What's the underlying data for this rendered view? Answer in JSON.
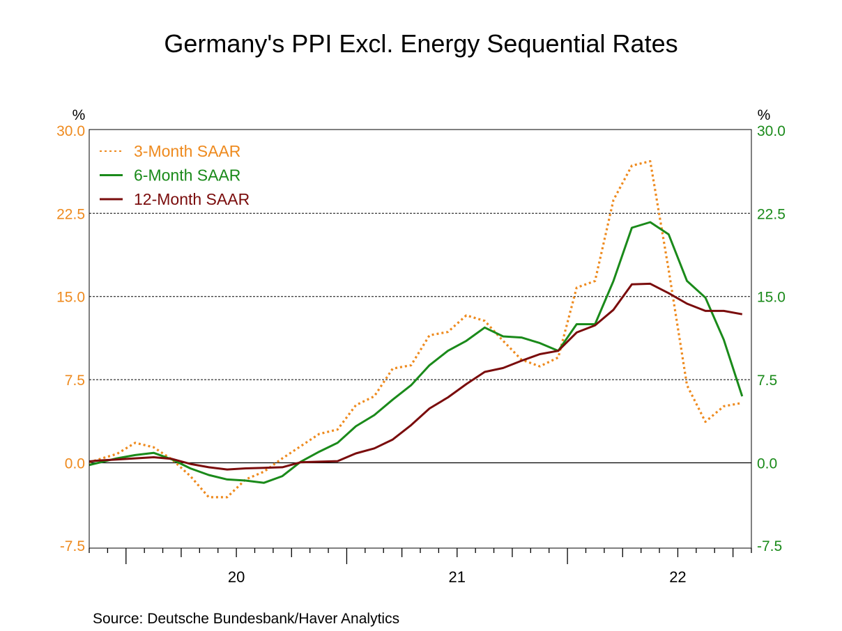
{
  "chart_data": {
    "type": "line",
    "title": "Germany's PPI Excl. Energy Sequential Rates",
    "source": "Source:  Deutsche Bundesbank/Haver Analytics",
    "left_unit": "%",
    "right_unit": "%",
    "ylim": [
      -7.5,
      30
    ],
    "y_ticks": [
      "30.0",
      "22.5",
      "15.0",
      "7.5",
      "0.0",
      "-7.5"
    ],
    "y_tick_values": [
      30,
      22.5,
      15,
      7.5,
      0,
      -7.5
    ],
    "grid": "dashed horizontal at 7.5, 15.0, 22.5; solid zero line",
    "x_range": [
      "2019-11",
      "2022-10"
    ],
    "x_tick_labels": [
      {
        "label": "20",
        "year": 2020
      },
      {
        "label": "21",
        "year": 2021
      },
      {
        "label": "22",
        "year": 2022
      }
    ],
    "legend_position": "top-left",
    "x": [
      "2019-10",
      "2019-11",
      "2019-12",
      "2020-01",
      "2020-02",
      "2020-03",
      "2020-04",
      "2020-05",
      "2020-06",
      "2020-07",
      "2020-08",
      "2020-09",
      "2020-10",
      "2020-11",
      "2020-12",
      "2021-01",
      "2021-02",
      "2021-03",
      "2021-04",
      "2021-05",
      "2021-06",
      "2021-07",
      "2021-08",
      "2021-09",
      "2021-10",
      "2021-11",
      "2021-12",
      "2022-01",
      "2022-02",
      "2022-03",
      "2022-04",
      "2022-05",
      "2022-06",
      "2022-07",
      "2022-08",
      "2022-09",
      "2022-10"
    ],
    "series": [
      {
        "name": "3-Month SAAR",
        "color": "#EE8A1E",
        "style": "dotted",
        "values": [
          -0.2,
          0.3,
          0.8,
          1.8,
          1.4,
          0.3,
          -1.2,
          -3.1,
          -3.1,
          -1.5,
          -0.8,
          0.4,
          1.5,
          2.6,
          3.0,
          5.2,
          6.0,
          8.5,
          8.8,
          11.5,
          11.8,
          13.3,
          12.8,
          11.0,
          9.3,
          8.7,
          9.5,
          15.8,
          16.4,
          23.7,
          26.8,
          27.2,
          17.4,
          7.0,
          3.7,
          5.1,
          5.4
        ]
      },
      {
        "name": "6-Month SAAR",
        "color": "#1A8A1A",
        "style": "solid",
        "values": [
          -0.4,
          0.0,
          0.4,
          0.7,
          0.9,
          0.3,
          -0.5,
          -1.1,
          -1.5,
          -1.6,
          -1.8,
          -1.2,
          0.1,
          1.0,
          1.8,
          3.3,
          4.3,
          5.7,
          7.0,
          8.8,
          10.1,
          11.0,
          12.2,
          11.4,
          11.3,
          10.8,
          10.1,
          12.5,
          12.5,
          16.4,
          21.2,
          21.7,
          20.6,
          16.4,
          14.9,
          11.1,
          6.0
        ]
      },
      {
        "name": "12-Month SAAR",
        "color": "#7A0C0C",
        "style": "solid",
        "values": [
          0.05,
          0.2,
          0.3,
          0.4,
          0.5,
          0.35,
          -0.1,
          -0.4,
          -0.6,
          -0.5,
          -0.45,
          -0.4,
          0.05,
          0.1,
          0.15,
          0.85,
          1.3,
          2.1,
          3.4,
          4.9,
          5.9,
          7.1,
          8.2,
          8.55,
          9.2,
          9.8,
          10.1,
          11.75,
          12.4,
          13.8,
          16.1,
          16.15,
          15.3,
          14.35,
          13.7,
          13.7,
          13.4
        ]
      }
    ],
    "left_axis_color": "#EE8A1E",
    "right_axis_color": "#1A8A1A"
  }
}
